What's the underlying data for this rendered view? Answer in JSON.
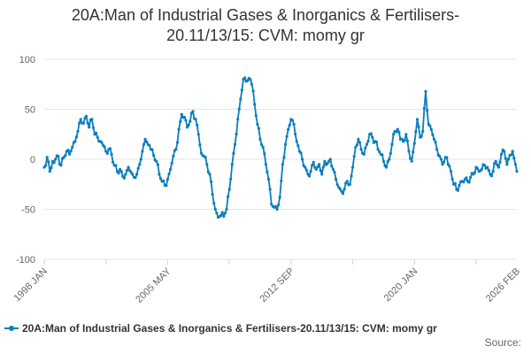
{
  "title_line1": "20A:Man of Industrial Gases & Inorganics & Fertilisers-",
  "title_line2": "20.11/13/15: CVM: momy gr",
  "source_label": "Source:",
  "series_color": "#0b7ebc",
  "chart_data": {
    "type": "line",
    "title": "20A:Man of Industrial Gases & Inorganics & Fertilisers-20.11/13/15: CVM: momy gr",
    "ylim": [
      -100,
      100
    ],
    "yticks": [
      100,
      50,
      0,
      -50,
      -100
    ],
    "xlim": [
      "1998-01",
      "2026-02"
    ],
    "xticks": [
      "1998 JAN",
      "2005 MAY",
      "2012 SEP",
      "2020 JAN",
      "2026 FEB"
    ],
    "grid": "horizontal",
    "legend_position": "bottom",
    "series": [
      {
        "name": "20A:Man of Industrial Gases & Inorganics & Fertilisers-20.11/13/15: CVM: momy gr",
        "x": [
          "1998-01",
          "1998-03",
          "1998-05",
          "1998-07",
          "1998-09",
          "1998-11",
          "1999-01",
          "1999-03",
          "1999-05",
          "1999-07",
          "1999-09",
          "1999-11",
          "2000-01",
          "2000-03",
          "2000-05",
          "2000-07",
          "2000-09",
          "2000-11",
          "2001-01",
          "2001-03",
          "2001-05",
          "2001-07",
          "2001-09",
          "2001-11",
          "2002-01",
          "2002-03",
          "2002-05",
          "2002-07",
          "2002-09",
          "2002-11",
          "2003-01",
          "2003-03",
          "2003-05",
          "2003-07",
          "2003-09",
          "2003-11",
          "2004-01",
          "2004-03",
          "2004-05",
          "2004-07",
          "2004-09",
          "2004-11",
          "2005-01",
          "2005-03",
          "2005-05",
          "2005-07",
          "2005-09",
          "2005-11",
          "2006-01",
          "2006-03",
          "2006-05",
          "2006-07",
          "2006-09",
          "2006-11",
          "2007-01",
          "2007-03",
          "2007-05",
          "2007-07",
          "2007-09",
          "2007-11",
          "2008-01",
          "2008-03",
          "2008-05",
          "2008-07",
          "2008-09",
          "2008-11",
          "2009-01",
          "2009-03",
          "2009-05",
          "2009-07",
          "2009-09",
          "2009-11",
          "2010-01",
          "2010-03",
          "2010-05",
          "2010-07",
          "2010-09",
          "2010-11",
          "2011-01",
          "2011-03",
          "2011-05",
          "2011-07",
          "2011-09",
          "2011-11",
          "2012-01",
          "2012-03",
          "2012-05",
          "2012-07",
          "2012-09",
          "2012-11",
          "2013-01",
          "2013-03",
          "2013-05",
          "2013-07",
          "2013-09",
          "2013-11",
          "2014-01",
          "2014-03",
          "2014-05",
          "2014-07",
          "2014-09",
          "2014-11",
          "2015-01",
          "2015-03",
          "2015-05",
          "2015-07",
          "2015-09",
          "2015-11",
          "2016-01",
          "2016-03",
          "2016-05",
          "2016-07",
          "2016-09",
          "2016-11",
          "2017-01",
          "2017-03",
          "2017-05",
          "2017-07",
          "2017-09",
          "2017-11",
          "2018-01",
          "2018-03",
          "2018-05",
          "2018-07",
          "2018-09",
          "2018-11",
          "2019-01",
          "2019-03",
          "2019-05",
          "2019-07",
          "2019-09",
          "2019-11",
          "2020-01",
          "2020-03",
          "2020-05",
          "2020-07",
          "2020-09",
          "2020-11",
          "2021-01",
          "2021-03",
          "2021-05",
          "2021-07",
          "2021-09",
          "2021-11",
          "2022-01",
          "2022-03",
          "2022-05",
          "2022-07",
          "2022-09",
          "2022-11",
          "2023-01",
          "2023-03",
          "2023-05",
          "2023-07",
          "2023-09",
          "2023-11",
          "2024-01",
          "2024-03",
          "2024-05",
          "2024-07",
          "2024-09",
          "2024-11",
          "2025-01",
          "2025-03",
          "2025-05",
          "2025-07",
          "2025-09",
          "2025-11",
          "2026-02"
        ],
        "y": [
          -8,
          2,
          -12,
          -2,
          0,
          3,
          -6,
          2,
          8,
          5,
          12,
          18,
          28,
          40,
          36,
          43,
          32,
          40,
          25,
          22,
          18,
          14,
          8,
          10,
          5,
          -6,
          -12,
          -10,
          -17,
          -15,
          -8,
          -13,
          -18,
          -15,
          -5,
          8,
          20,
          15,
          10,
          4,
          -2,
          -15,
          -22,
          -26,
          -20,
          -10,
          3,
          10,
          30,
          45,
          42,
          32,
          38,
          48,
          40,
          25,
          6,
          3,
          -5,
          -15,
          -35,
          -50,
          -58,
          -56,
          -57,
          -50,
          -30,
          -5,
          15,
          40,
          60,
          80,
          78,
          81,
          75,
          55,
          35,
          20,
          12,
          -5,
          -20,
          -45,
          -48,
          -50,
          -38,
          -5,
          15,
          30,
          40,
          35,
          18,
          8,
          0,
          -8,
          -15,
          -12,
          -3,
          -10,
          -5,
          -15,
          -2,
          -4,
          0,
          -10,
          -20,
          -28,
          -32,
          -30,
          -22,
          -25,
          -8,
          12,
          20,
          10,
          5,
          15,
          25,
          22,
          18,
          10,
          5,
          -2,
          -8,
          0,
          15,
          28,
          30,
          20,
          18,
          25,
          8,
          -2,
          16,
          40,
          22,
          28,
          68,
          35,
          30,
          20,
          10,
          3,
          -5,
          2,
          -5,
          -12,
          -25,
          -30,
          -26,
          -22,
          -20,
          -22,
          -18,
          -15,
          -8,
          -12,
          -10,
          -6,
          -8,
          -15,
          -12,
          -2,
          -8,
          5,
          8,
          -5,
          4,
          8,
          -12
        ]
      }
    ]
  }
}
